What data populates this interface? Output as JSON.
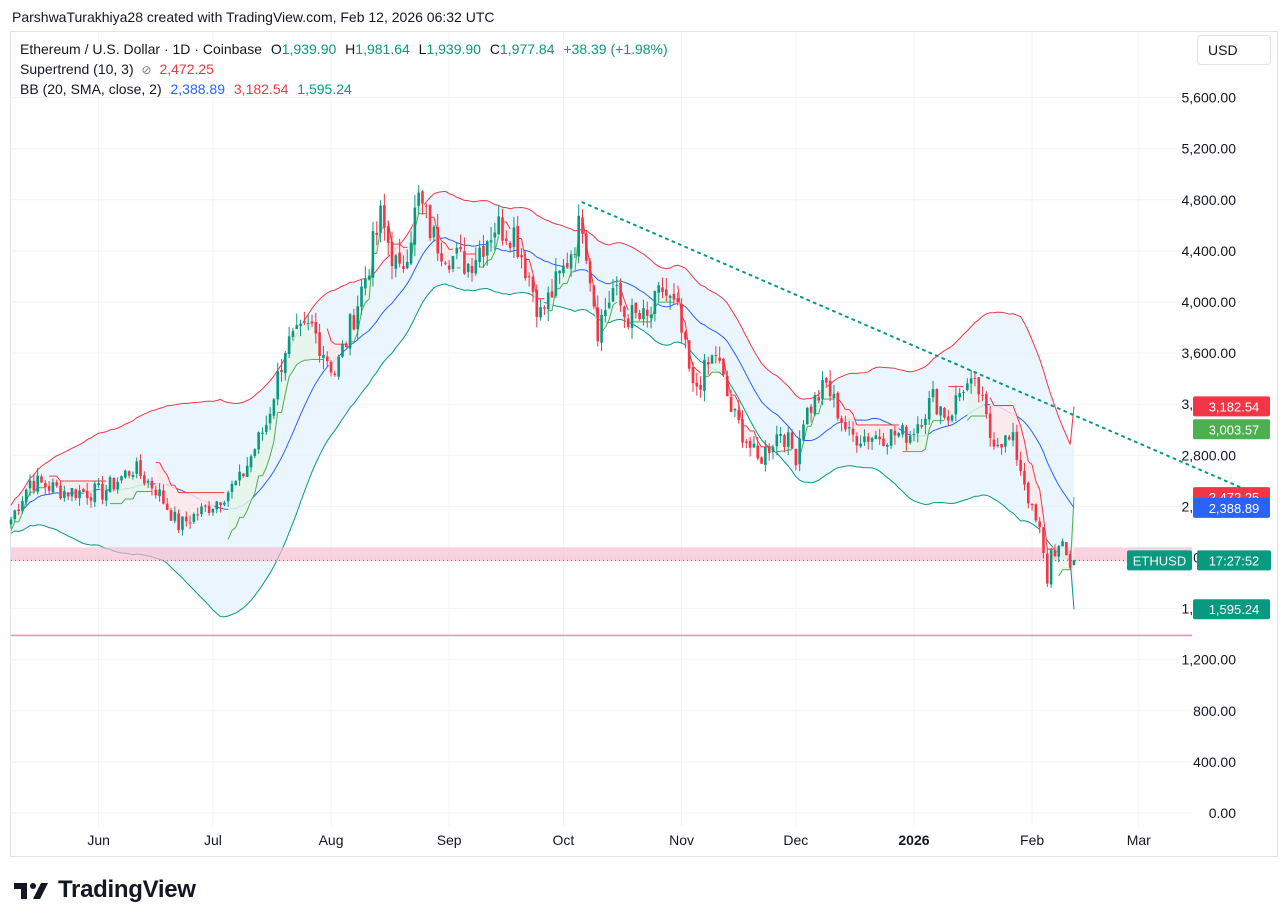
{
  "header": {
    "caption": "ParshwaTurakhiya28 created with TradingView.com, Feb 12, 2026 06:32 UTC"
  },
  "legend": {
    "symbol": "Ethereum / U.S. Dollar · 1D · Coinbase",
    "o_label": "O",
    "o_value": "1,939.90",
    "h_label": "H",
    "h_value": "1,981.64",
    "l_label": "L",
    "l_value": "1,939.90",
    "c_label": "C",
    "c_value": "1,977.84",
    "change": "+38.39 (+1.98%)",
    "supertrend_label": "Supertrend (10, 3)",
    "supertrend_value": "2,472.25",
    "bb_label": "BB (20, SMA, close, 2)",
    "bb_basis": "2,388.89",
    "bb_upper": "3,182.54",
    "bb_lower": "1,595.24"
  },
  "currency": "USD",
  "branding": "TradingView",
  "colors": {
    "up": "#089981",
    "down": "#f23645",
    "basis": "#2962ff",
    "band_fill": "#e3f2fd",
    "st_up_fill": "#e8f5e9",
    "st_down_fill": "#fde7ea",
    "zone": "#f8bbd0",
    "trendline": "#089981"
  },
  "chart_data": {
    "type": "candlestick",
    "title": "Ethereum / U.S. Dollar · 1D · Coinbase",
    "ylim": [
      0,
      5900
    ],
    "y_ticks": [
      "0.00",
      "400.00",
      "800.00",
      "1,200.00",
      "1,600.00",
      "2,000.00",
      "2,400.00",
      "2,800.00",
      "3,200.00",
      "3,600.00",
      "4,000.00",
      "4,400.00",
      "4,800.00",
      "5,200.00",
      "5,600.00"
    ],
    "y_tick_values": [
      0,
      400,
      800,
      1200,
      1600,
      2000,
      2400,
      2800,
      3200,
      3600,
      4000,
      4400,
      4800,
      5200,
      5600
    ],
    "x_ticks": [
      {
        "label": "Jun",
        "date": "2025-06-01",
        "bold": false
      },
      {
        "label": "Jul",
        "date": "2025-07-01",
        "bold": false
      },
      {
        "label": "Aug",
        "date": "2025-08-01",
        "bold": false
      },
      {
        "label": "Sep",
        "date": "2025-09-01",
        "bold": false
      },
      {
        "label": "Oct",
        "date": "2025-10-01",
        "bold": false
      },
      {
        "label": "Nov",
        "date": "2025-11-01",
        "bold": false
      },
      {
        "label": "Dec",
        "date": "2025-12-01",
        "bold": false
      },
      {
        "label": "2026",
        "date": "2026-01-01",
        "bold": true
      },
      {
        "label": "Feb",
        "date": "2026-02-01",
        "bold": false
      },
      {
        "label": "Mar",
        "date": "2026-03-01",
        "bold": false
      }
    ],
    "x_range": [
      "2025-05-09",
      "2026-03-30"
    ],
    "start_date": "2025-05-09",
    "close_path": [
      [
        "2025-05-09",
        2300
      ],
      [
        "2025-05-14",
        2600
      ],
      [
        "2025-05-23",
        2520
      ],
      [
        "2025-06-02",
        2510
      ],
      [
        "2025-06-10",
        2700
      ],
      [
        "2025-06-16",
        2540
      ],
      [
        "2025-06-22",
        2250
      ],
      [
        "2025-07-01",
        2420
      ],
      [
        "2025-07-08",
        2600
      ],
      [
        "2025-07-15",
        3050
      ],
      [
        "2025-07-20",
        3650
      ],
      [
        "2025-07-27",
        3800
      ],
      [
        "2025-08-02",
        3450
      ],
      [
        "2025-08-05",
        3700
      ],
      [
        "2025-08-10",
        4200
      ],
      [
        "2025-08-14",
        4650
      ],
      [
        "2025-08-19",
        4200
      ],
      [
        "2025-08-24",
        4800
      ],
      [
        "2025-08-28",
        4500
      ],
      [
        "2025-09-02",
        4350
      ],
      [
        "2025-09-06",
        4300
      ],
      [
        "2025-09-13",
        4600
      ],
      [
        "2025-09-18",
        4550
      ],
      [
        "2025-09-22",
        4200
      ],
      [
        "2025-09-25",
        3900
      ],
      [
        "2025-10-01",
        4250
      ],
      [
        "2025-10-06",
        4650
      ],
      [
        "2025-10-10",
        3800
      ],
      [
        "2025-10-14",
        4100
      ],
      [
        "2025-10-17",
        3900
      ],
      [
        "2025-10-23",
        3850
      ],
      [
        "2025-10-27",
        4100
      ],
      [
        "2025-10-31",
        3900
      ],
      [
        "2025-11-04",
        3300
      ],
      [
        "2025-11-10",
        3600
      ],
      [
        "2025-11-14",
        3150
      ],
      [
        "2025-11-21",
        2750
      ],
      [
        "2025-11-27",
        3000
      ],
      [
        "2025-12-01",
        2800
      ],
      [
        "2025-12-03",
        3100
      ],
      [
        "2025-12-09",
        3350
      ],
      [
        "2025-12-15",
        2950
      ],
      [
        "2025-12-20",
        2950
      ],
      [
        "2025-12-31",
        2970
      ],
      [
        "2026-01-06",
        3250
      ],
      [
        "2026-01-10",
        3100
      ],
      [
        "2026-01-14",
        3350
      ],
      [
        "2026-01-18",
        3300
      ],
      [
        "2026-01-21",
        2950
      ],
      [
        "2026-01-27",
        2900
      ],
      [
        "2026-01-30",
        2600
      ],
      [
        "2026-02-01",
        2350
      ],
      [
        "2026-02-03",
        2200
      ],
      [
        "2026-02-05",
        1820
      ],
      [
        "2026-02-06",
        2050
      ],
      [
        "2026-02-09",
        2070
      ],
      [
        "2026-02-11",
        1940
      ],
      [
        "2026-02-12",
        1977.84
      ]
    ],
    "last": {
      "open": 1939.9,
      "high": 1981.64,
      "low": 1939.9,
      "close": 1977.84,
      "change": 38.39,
      "change_pct": 1.98
    },
    "bollinger": {
      "basis": 2388.89,
      "upper": 3182.54,
      "lower": 1595.24,
      "upper_offset_anchors": [
        [
          0,
          220
        ],
        [
          20,
          820
        ],
        [
          40,
          1200
        ],
        [
          55,
          1700
        ],
        [
          75,
          1400
        ],
        [
          95,
          800
        ],
        [
          120,
          700
        ],
        [
          160,
          600
        ],
        [
          200,
          600
        ],
        [
          225,
          750
        ],
        [
          250,
          1300
        ],
        [
          265,
          1600
        ],
        [
          280,
          800
        ]
      ]
    },
    "supertrend": {
      "value": 2472.25,
      "direction": "down"
    },
    "horizontal_zones": [
      {
        "from": 1970,
        "to": 2080,
        "kind": "band"
      },
      {
        "at": 1390,
        "kind": "line"
      }
    ],
    "trendline": {
      "from": [
        "2025-10-06",
        4780
      ],
      "to": [
        "2026-03-30",
        2520
      ]
    },
    "price_labels": [
      {
        "text": "3,182.54",
        "value": 3182.54,
        "color": "#f23645"
      },
      {
        "text": "3,003.57",
        "value": 3003.57,
        "color": "#4caf50"
      },
      {
        "text": "2,472.25",
        "value": 2472.25,
        "color": "#f23645"
      },
      {
        "text": "2,388.89",
        "value": 2388.89,
        "color": "#2962ff"
      },
      {
        "text": "1,595.24",
        "value": 1595.24,
        "color": "#089981"
      }
    ],
    "current_price": {
      "symbol": "ETHUSD",
      "countdown": "17:27:52",
      "value": 1977.84
    }
  }
}
